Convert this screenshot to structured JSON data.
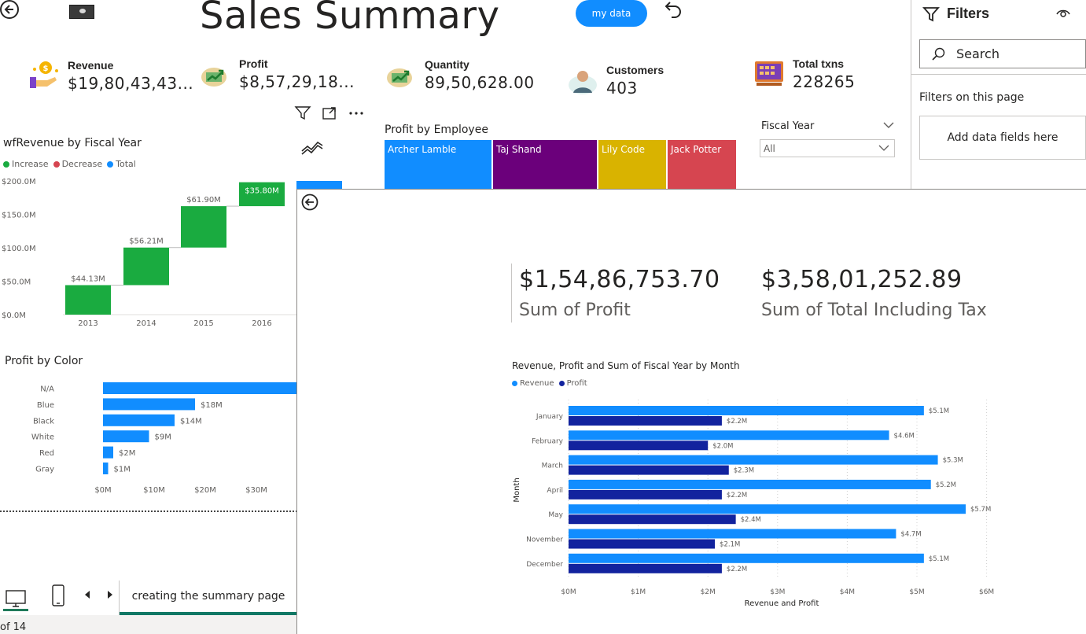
{
  "header": {
    "back_icon": "arrow-left-circle-icon",
    "title": "Sales Summary",
    "my_data_label": "my data",
    "undo_icon": "undo-icon"
  },
  "kpis": [
    {
      "label": "Revenue",
      "value": "$19,80,43,43...",
      "icon": "revenue-hand-coin-icon"
    },
    {
      "label": "Profit",
      "value": "$8,57,29,18...",
      "icon": "money-growth-icon"
    },
    {
      "label": "Quantity",
      "value": "89,50,628.00",
      "icon": "money-growth-icon"
    },
    {
      "label": "Customers",
      "value": "403",
      "icon": "customer-icon"
    },
    {
      "label": "Total txns",
      "value": "228265",
      "icon": "cash-register-icon"
    }
  ],
  "waterfall": {
    "title": "wfRevenue by Fiscal Year",
    "legend": [
      {
        "name": "Increase",
        "color": "#1aab40"
      },
      {
        "name": "Decrease",
        "color": "#d64550"
      },
      {
        "name": "Total",
        "color": "#118dff"
      }
    ]
  },
  "profit_by_color": {
    "title": "Profit by Color"
  },
  "profit_by_employee": {
    "title": "Profit by Employee",
    "cells": [
      {
        "name": "Archer Lamble",
        "color": "#118dff"
      },
      {
        "name": "Taj Shand",
        "color": "#6b007b"
      },
      {
        "name": "Lily Code",
        "color": "#d9b300"
      },
      {
        "name": "Jack Potter",
        "color": "#d64550"
      }
    ]
  },
  "fiscal_year_slicer": {
    "label": "Fiscal Year",
    "selected": "All"
  },
  "filters_pane": {
    "title": "Filters",
    "search_placeholder": "Search",
    "section": "Filters on this page",
    "add_fields": "Add data fields here"
  },
  "bottom": {
    "page_tab": "creating the summary page",
    "page_count": "of 14"
  },
  "drillthrough": {
    "cards": [
      {
        "value": "$1,54,86,753.70",
        "label": "Sum of Profit"
      },
      {
        "value": "$3,58,01,252.89",
        "label": "Sum of Total Including Tax"
      }
    ],
    "chart_title": "Revenue, Profit and Sum of Fiscal Year by Month",
    "legend": [
      {
        "name": "Revenue",
        "color": "#118dff"
      },
      {
        "name": "Profit",
        "color": "#12239e"
      }
    ]
  },
  "chart_data": [
    {
      "type": "bar",
      "subtype": "waterfall",
      "title": "wfRevenue by Fiscal Year",
      "categories": [
        "2013",
        "2014",
        "2015",
        "2016"
      ],
      "values": [
        44.13,
        56.21,
        61.9,
        35.8
      ],
      "data_labels": [
        "$44.13M",
        "$56.21M",
        "$61.90M",
        "$35.80M"
      ],
      "total_visible": true,
      "y_unit": "M",
      "ylim": [
        0,
        200
      ],
      "y_ticks": [
        "$0.0M",
        "$50.0M",
        "$100.0M",
        "$150.0M",
        "$200.0M"
      ],
      "legend": [
        "Increase",
        "Decrease",
        "Total"
      ]
    },
    {
      "type": "bar",
      "orientation": "horizontal",
      "title": "Profit by Color",
      "categories": [
        "N/A",
        "Blue",
        "Black",
        "White",
        "Red",
        "Gray"
      ],
      "values": [
        38,
        18,
        14,
        9,
        2,
        1
      ],
      "data_labels": [
        "",
        "$18M",
        "$14M",
        "$9M",
        "$2M",
        "$1M"
      ],
      "xlim": [
        0,
        38
      ],
      "x_ticks": [
        "$0M",
        "$10M",
        "$20M",
        "$30M"
      ],
      "color": "#118dff"
    },
    {
      "type": "bar",
      "orientation": "horizontal",
      "title": "Revenue, Profit and Sum of Fiscal Year by Month",
      "xlabel": "Revenue and Profit",
      "ylabel": "Month",
      "categories": [
        "January",
        "February",
        "March",
        "April",
        "May",
        "November",
        "December"
      ],
      "series": [
        {
          "name": "Revenue",
          "values": [
            5.1,
            4.6,
            5.3,
            5.2,
            5.7,
            4.7,
            5.1
          ],
          "labels": [
            "$5.1M",
            "$4.6M",
            "$5.3M",
            "$5.2M",
            "$5.7M",
            "$4.7M",
            "$5.1M"
          ],
          "color": "#118dff"
        },
        {
          "name": "Profit",
          "values": [
            2.2,
            2.0,
            2.3,
            2.2,
            2.4,
            2.1,
            2.2
          ],
          "labels": [
            "$2.2M",
            "$2.0M",
            "$2.3M",
            "$2.2M",
            "$2.4M",
            "$2.1M",
            "$2.2M"
          ],
          "color": "#12239e"
        }
      ],
      "xlim": [
        0,
        6
      ],
      "x_ticks": [
        "$0M",
        "$1M",
        "$2M",
        "$3M",
        "$4M",
        "$5M",
        "$6M"
      ],
      "grid": true,
      "legend_position": "top-left"
    }
  ]
}
